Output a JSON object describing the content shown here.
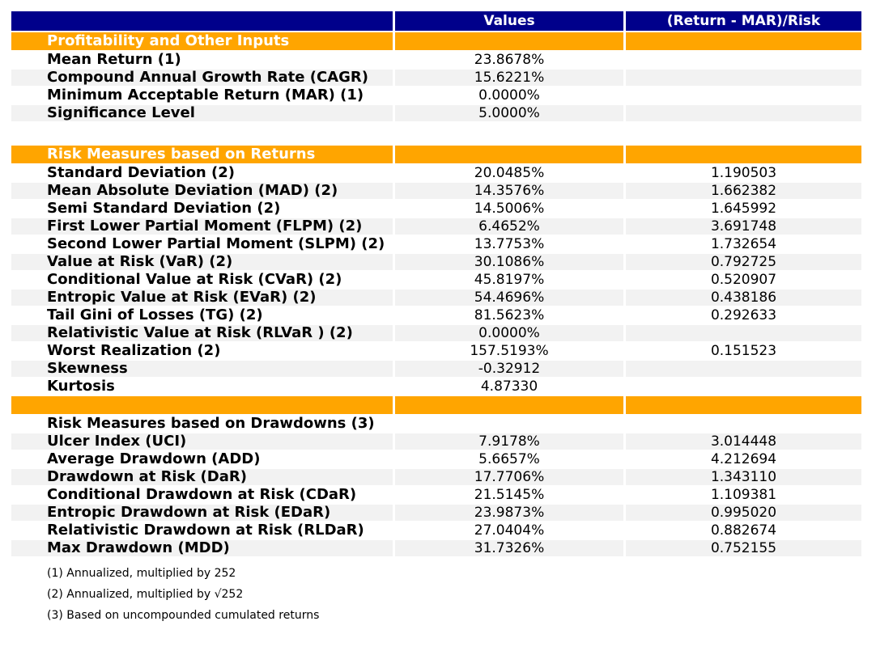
{
  "colors": {
    "header_bg": "#00008B",
    "section_bg": "#FFA500",
    "stripe_bg": "#F2F2F2",
    "header_text": "#FFFFFF",
    "body_text": "#000000"
  },
  "chart_data": {
    "type": "table",
    "columns": [
      "",
      "Values",
      "(Return - MAR)/Risk"
    ],
    "rows": [
      {
        "kind": "section",
        "label": "Profitability and Other Inputs",
        "value": "",
        "ratio": ""
      },
      {
        "kind": "data",
        "shade": "plain",
        "label": "Mean Return (1)",
        "value": "23.8678%",
        "ratio": ""
      },
      {
        "kind": "data",
        "shade": "stripe",
        "label": "Compound Annual Growth Rate (CAGR)",
        "value": "15.6221%",
        "ratio": ""
      },
      {
        "kind": "data",
        "shade": "plain",
        "label": "Minimum Acceptable Return (MAR) (1)",
        "value": "0.0000%",
        "ratio": ""
      },
      {
        "kind": "data",
        "shade": "stripe",
        "label": "Significance Level",
        "value": "5.0000%",
        "ratio": ""
      },
      {
        "kind": "spacer",
        "label": "",
        "value": "",
        "ratio": ""
      },
      {
        "kind": "section",
        "label": "Risk Measures based on Returns",
        "value": "",
        "ratio": ""
      },
      {
        "kind": "data",
        "shade": "plain",
        "label": "Standard Deviation (2)",
        "value": "20.0485%",
        "ratio": "1.190503"
      },
      {
        "kind": "data",
        "shade": "stripe",
        "label": "Mean Absolute Deviation (MAD) (2)",
        "value": "14.3576%",
        "ratio": "1.662382"
      },
      {
        "kind": "data",
        "shade": "plain",
        "label": "Semi Standard Deviation (2)",
        "value": "14.5006%",
        "ratio": "1.645992"
      },
      {
        "kind": "data",
        "shade": "stripe",
        "label": "First Lower Partial Moment (FLPM) (2)",
        "value": "6.4652%",
        "ratio": "3.691748"
      },
      {
        "kind": "data",
        "shade": "plain",
        "label": "Second Lower Partial Moment (SLPM) (2)",
        "value": "13.7753%",
        "ratio": "1.732654"
      },
      {
        "kind": "data",
        "shade": "stripe",
        "label": "Value at Risk (VaR) (2)",
        "value": "30.1086%",
        "ratio": "0.792725"
      },
      {
        "kind": "data",
        "shade": "plain",
        "label": "Conditional Value at Risk (CVaR) (2)",
        "value": "45.8197%",
        "ratio": "0.520907"
      },
      {
        "kind": "data",
        "shade": "stripe",
        "label": "Entropic Value at Risk (EVaR) (2)",
        "value": "54.4696%",
        "ratio": "0.438186"
      },
      {
        "kind": "data",
        "shade": "plain",
        "label": "Tail Gini of Losses (TG) (2)",
        "value": "81.5623%",
        "ratio": "0.292633"
      },
      {
        "kind": "data",
        "shade": "stripe",
        "label": "Relativistic Value at Risk (RLVaR ) (2)",
        "value": "0.0000%",
        "ratio": ""
      },
      {
        "kind": "data",
        "shade": "plain",
        "label": "Worst Realization (2)",
        "value": "157.5193%",
        "ratio": "0.151523"
      },
      {
        "kind": "data",
        "shade": "stripe",
        "label": "Skewness",
        "value": "-0.32912",
        "ratio": ""
      },
      {
        "kind": "data",
        "shade": "plain",
        "label": "Kurtosis",
        "value": "4.87330",
        "ratio": ""
      },
      {
        "kind": "section",
        "label": "",
        "value": "",
        "ratio": ""
      },
      {
        "kind": "subheader",
        "label": "Risk Measures based on Drawdowns (3)",
        "value": "",
        "ratio": ""
      },
      {
        "kind": "data",
        "shade": "stripe",
        "label": "Ulcer Index (UCI)",
        "value": "7.9178%",
        "ratio": "3.014448"
      },
      {
        "kind": "data",
        "shade": "plain",
        "label": "Average Drawdown (ADD)",
        "value": "5.6657%",
        "ratio": "4.212694"
      },
      {
        "kind": "data",
        "shade": "stripe",
        "label": "Drawdown at Risk (DaR)",
        "value": "17.7706%",
        "ratio": "1.343110"
      },
      {
        "kind": "data",
        "shade": "plain",
        "label": "Conditional Drawdown at Risk (CDaR)",
        "value": "21.5145%",
        "ratio": "1.109381"
      },
      {
        "kind": "data",
        "shade": "stripe",
        "label": "Entropic Drawdown at Risk (EDaR)",
        "value": "23.9873%",
        "ratio": "0.995020"
      },
      {
        "kind": "data",
        "shade": "plain",
        "label": "Relativistic Drawdown at Risk (RLDaR)",
        "value": "27.0404%",
        "ratio": "0.882674"
      },
      {
        "kind": "data",
        "shade": "stripe",
        "label": "Max Drawdown (MDD)",
        "value": "31.7326%",
        "ratio": "0.752155"
      }
    ],
    "footnotes": [
      "(1) Annualized, multiplied by 252",
      "(2) Annualized, multiplied by √252",
      "(3) Based on uncompounded cumulated returns"
    ]
  }
}
